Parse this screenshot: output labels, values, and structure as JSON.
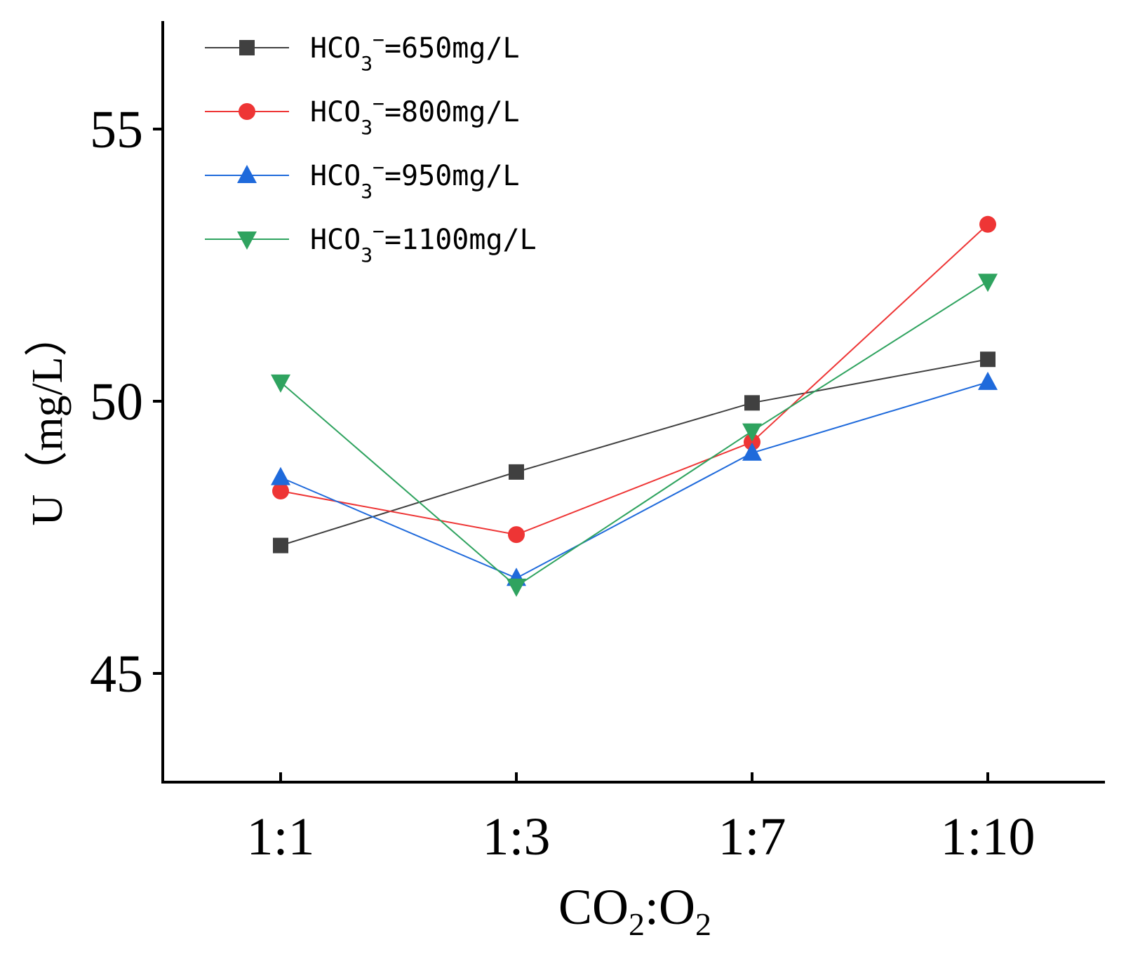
{
  "chart_data": {
    "type": "line",
    "xlabel": "CO2:O2",
    "xlabel_parts": {
      "a": "CO",
      "a_sub": "2",
      "sep": ":",
      "b": "O",
      "b_sub": "2"
    },
    "ylabel": "U（mg/L）",
    "categories": [
      "1:1",
      "1:3",
      "1:7",
      "1:10"
    ],
    "ylim": [
      43,
      57
    ],
    "yticks": [
      45,
      50,
      55
    ],
    "ytick_labels": [
      "45",
      "50",
      "55"
    ],
    "grid": false,
    "legend_position": "top-left",
    "series": [
      {
        "name": "HCO3−=650mg/L",
        "label_parts": {
          "pre": "HCO",
          "sub": "3",
          "sup": "−",
          "post": "=650mg/L"
        },
        "color": "#404040",
        "marker": "square",
        "values": [
          47.35,
          48.7,
          49.97,
          50.77
        ]
      },
      {
        "name": "HCO3−=800mg/L",
        "label_parts": {
          "pre": "HCO",
          "sub": "3",
          "sup": "−",
          "post": "=800mg/L"
        },
        "color": "#ee3535",
        "marker": "circle",
        "values": [
          48.35,
          47.55,
          49.25,
          53.25
        ]
      },
      {
        "name": "HCO3−=950mg/L",
        "label_parts": {
          "pre": "HCO",
          "sub": "3",
          "sup": "−",
          "post": "=950mg/L"
        },
        "color": "#1f6adb",
        "marker": "triangle-up",
        "values": [
          48.6,
          46.75,
          49.05,
          50.35
        ]
      },
      {
        "name": "HCO3−=1100mg/L",
        "label_parts": {
          "pre": "HCO",
          "sub": "3",
          "sup": "−",
          "post": "=1100mg/L"
        },
        "color": "#2fa35f",
        "marker": "triangle-down",
        "values": [
          50.35,
          46.6,
          49.45,
          52.2
        ]
      }
    ]
  }
}
